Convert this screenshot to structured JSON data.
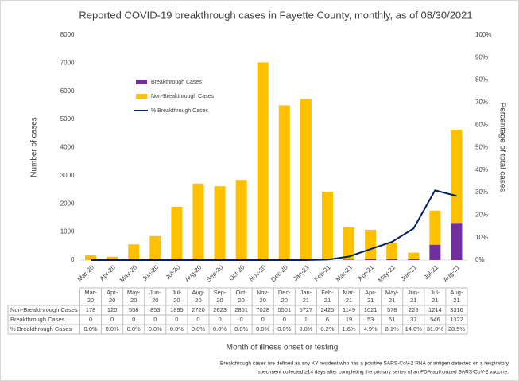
{
  "chart_data": {
    "type": "bar",
    "title": "Reported COVID-19 breakthrough cases in Fayette County, monthly, as of 08/30/2021",
    "y_label": "Number of cases",
    "y2_label": "Percentage of total cases",
    "x_label": "Month of illness onset or testing",
    "note": [
      "Breakthrough cases are defined as any KY resident who has a positive SARS-CoV-2 RNA or antigen detected on a respiratory",
      "speciment collected ≥14 days after completing the primary series of an FDA-authorized SARS-CoV-2 vaccine."
    ],
    "categories": [
      "Mar-20",
      "Apr-20",
      "May-20",
      "Jun-20",
      "Jul-20",
      "Aug-20",
      "Sep-20",
      "Oct-20",
      "Nov-20",
      "Dec-20",
      "Jan-21",
      "Feb-21",
      "Mar-21",
      "Apr-21",
      "May-21",
      "Jun-21",
      "Jul-21",
      "Aug-21"
    ],
    "series": [
      {
        "name": "Breakthrough Cases",
        "type": "bar",
        "color": "#7030a0",
        "values": [
          0,
          0,
          0,
          0,
          0,
          0,
          0,
          0,
          0,
          0,
          1,
          6,
          19,
          53,
          51,
          37,
          546,
          1322
        ]
      },
      {
        "name": "Non-Breakthrough Cases",
        "type": "bar",
        "color": "#ffc000",
        "values": [
          178,
          120,
          558,
          853,
          1895,
          2720,
          2623,
          2851,
          7028,
          5501,
          5727,
          2425,
          1149,
          1021,
          578,
          228,
          1214,
          3316
        ]
      },
      {
        "name": "% Breakthrough Cases",
        "type": "line",
        "axis": "y2",
        "color": "#002060",
        "values": [
          0,
          0,
          0,
          0,
          0,
          0,
          0,
          0,
          0,
          0,
          0,
          0.2,
          1.6,
          4.9,
          8.1,
          14.0,
          31.0,
          28.5
        ],
        "value_labels": [
          "0.0%",
          "0.0%",
          "0.0%",
          "0.0%",
          "0.0%",
          "0.0%",
          "0.0%",
          "0.0%",
          "0.0%",
          "0.0%",
          "0.0%",
          "0.2%",
          "1.6%",
          "4.9%",
          "8.1%",
          "14.0%",
          "31.0%",
          "28.5%"
        ]
      }
    ],
    "table_order": [
      1,
      0,
      2
    ],
    "stacked": true,
    "ylim": [
      0,
      8000
    ],
    "yticks": [
      0,
      1000,
      2000,
      3000,
      4000,
      5000,
      6000,
      7000,
      8000
    ],
    "y2lim": [
      0,
      100
    ],
    "y2ticks": [
      {
        "value": 0,
        "label": "0%"
      },
      {
        "value": 10,
        "label": "10%"
      },
      {
        "value": 20,
        "label": "20%"
      },
      {
        "value": 30,
        "label": "30%"
      },
      {
        "value": 40,
        "label": "40%"
      },
      {
        "value": 50,
        "label": "50%"
      },
      {
        "value": 60,
        "label": "60%"
      },
      {
        "value": 70,
        "label": "70%"
      },
      {
        "value": 80,
        "label": "80%"
      },
      {
        "value": 90,
        "label": "90%"
      },
      {
        "value": 100,
        "label": "100%"
      }
    ],
    "legend_order": [
      0,
      1,
      2
    ]
  }
}
